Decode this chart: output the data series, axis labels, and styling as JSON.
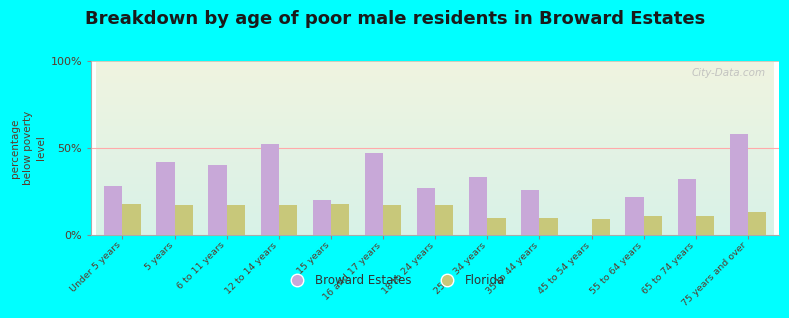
{
  "title": "Breakdown by age of poor male residents in Broward Estates",
  "ylabel": "percentage\nbelow poverty\nlevel",
  "categories": [
    "Under 5 years",
    "5 years",
    "6 to 11 years",
    "12 to 14 years",
    "15 years",
    "16 and 17 years",
    "18 to 24 years",
    "25 to 34 years",
    "35 to 44 years",
    "45 to 54 years",
    "55 to 64 years",
    "65 to 74 years",
    "75 years and over"
  ],
  "broward_estates": [
    28,
    42,
    40,
    52,
    20,
    47,
    27,
    33,
    26,
    0,
    22,
    32,
    58
  ],
  "florida": [
    18,
    17,
    17,
    17,
    18,
    17,
    17,
    10,
    10,
    9,
    11,
    11,
    13
  ],
  "broward_color": "#c8a8d8",
  "florida_color": "#c8c87a",
  "background_top": "#f0f4e0",
  "background_bottom": "#d8f2e8",
  "fig_bg_color": "#00ffff",
  "ylim": [
    0,
    100
  ],
  "yticks": [
    0,
    50,
    100
  ],
  "ytick_labels": [
    "0%",
    "50%",
    "100%"
  ],
  "bar_width": 0.35,
  "title_fontsize": 13,
  "legend_labels": [
    "Broward Estates",
    "Florida"
  ],
  "watermark": "City-Data.com",
  "tick_label_color": "#5a3a2a",
  "ylabel_color": "#5a3a2a",
  "title_color": "#1a1a1a"
}
